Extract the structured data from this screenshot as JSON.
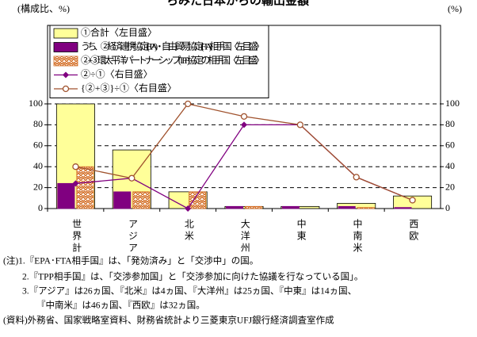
{
  "chart_data": {
    "type": "bar_line",
    "title": "らみた日本からの輸出金額",
    "ylabel": "(構成比、%)",
    "y2label": "(%)",
    "categories": [
      "世界計",
      "アジア",
      "北米",
      "大洋州",
      "中東",
      "中南米",
      "西欧"
    ],
    "series": [
      {
        "name": "①合計〈左目盛〉",
        "kind": "bar",
        "color": "#ffff99",
        "values": [
          100,
          56,
          16,
          2,
          2,
          5,
          12
        ]
      },
      {
        "name": "うち、②経済連携協定(EPA)・自由貿易協定(FTA)相手国〈左目盛〉",
        "kind": "bar",
        "color": "#800080",
        "values": [
          24,
          16,
          0,
          2,
          2,
          2,
          1
        ]
      },
      {
        "name": "②+③環太平洋パートナーシップ(TPP)協定の相手国〈左目盛〉",
        "kind": "bar",
        "color": "#d2691e",
        "pattern": "hatch",
        "values": [
          40,
          16,
          16,
          2,
          0,
          1,
          0
        ]
      },
      {
        "name": "②÷①〈右目盛〉",
        "kind": "line",
        "axis": "y2",
        "marker": "diamond",
        "color": "#800080",
        "values": [
          24,
          29,
          0,
          80,
          80,
          30,
          8
        ]
      },
      {
        "name": "{②+③}÷①〈右目盛〉",
        "kind": "line",
        "axis": "y2",
        "marker": "circle",
        "color": "#a0522d",
        "values": [
          40,
          29,
          100,
          88,
          80,
          30,
          8
        ]
      }
    ],
    "ylim": [
      0,
      175
    ],
    "yticks": [
      0,
      20,
      40,
      60,
      80,
      100
    ],
    "y2lim": [
      0,
      175
    ],
    "y2ticks": [
      0,
      20,
      40,
      60,
      80,
      100
    ],
    "grid": true,
    "legend": "upper left",
    "notes": [
      "(注)1.『EPA･FTA相手国』は、「発効済み」と「交渉中」の国。",
      "2.『TPP相手国』は、「交渉参加国」と「交渉参加に向けた協議を行なっている国」。",
      "3.『アジア』は26ヵ国、『北米』は4ヵ国、『大洋州』は25ヵ国、『中東』は14ヵ国、",
      "『中南米』は46ヵ国、『西欧』は32ヵ国。",
      "(資料)外務省、国家戦略室資料、財務省統計より三菱東京UFJ銀行経済調査室作成"
    ]
  }
}
